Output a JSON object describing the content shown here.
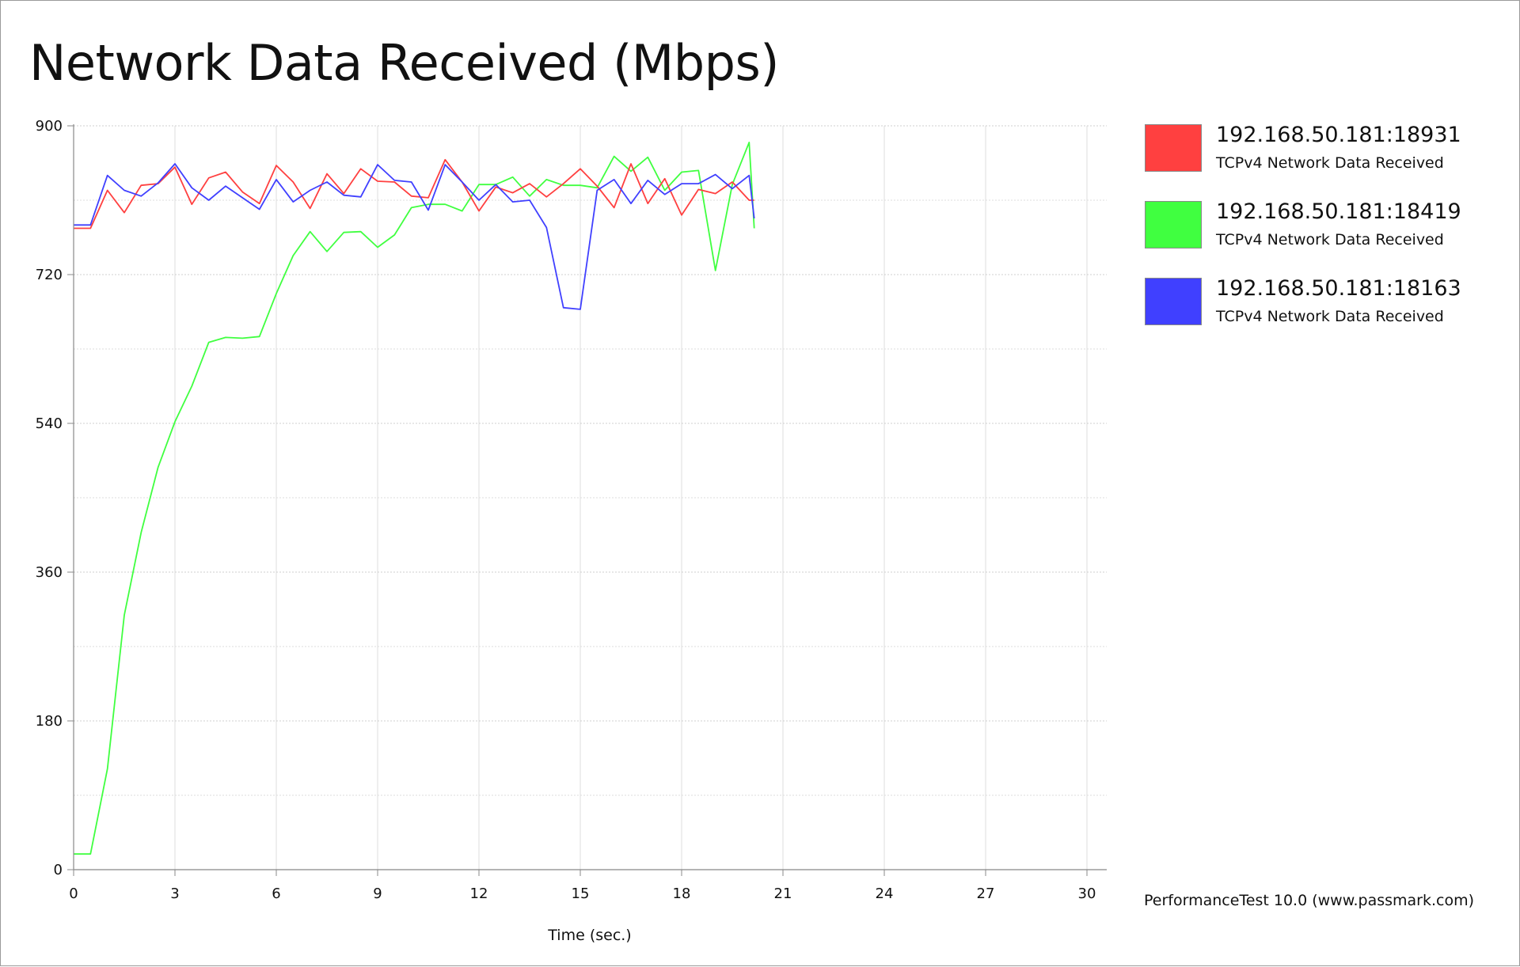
{
  "chart_data": {
    "type": "line",
    "title": "Network Data Received (Mbps)",
    "xlabel": "Time (sec.)",
    "ylabel": "",
    "xlim": [
      0,
      30
    ],
    "ylim": [
      0,
      900
    ],
    "xticks": [
      "0",
      "3",
      "6",
      "9",
      "12",
      "15",
      "18",
      "21",
      "24",
      "27",
      "30"
    ],
    "yticks": [
      "0",
      "180",
      "360",
      "540",
      "720",
      "900"
    ],
    "grid": true,
    "legend_position": "right",
    "series": [
      {
        "name": "192.168.50.181:18931",
        "subtitle": "TCPv4 Network Data Received",
        "color": "#ff4040",
        "x": [
          0,
          0.5,
          1,
          1.5,
          2,
          2.5,
          3,
          3.5,
          4,
          4.5,
          5,
          5.5,
          6,
          6.5,
          7,
          7.5,
          8,
          8.5,
          9,
          9.5,
          10,
          10.5,
          11,
          11.5,
          12,
          12.5,
          13,
          13.5,
          14,
          14.5,
          15,
          15.5,
          16,
          16.5,
          17,
          17.5,
          18,
          18.5,
          19,
          19.5,
          20,
          20.15
        ],
        "y": [
          776,
          776,
          822,
          795,
          828,
          830,
          850,
          805,
          837,
          844,
          820,
          806,
          852,
          832,
          800,
          842,
          818,
          848,
          833,
          832,
          815,
          813,
          859,
          832,
          797,
          826,
          819,
          830,
          814,
          830,
          848,
          827,
          801,
          854,
          806,
          836,
          792,
          823,
          818,
          832,
          810,
          810
        ]
      },
      {
        "name": "192.168.50.181:18419",
        "subtitle": "TCPv4 Network Data Received",
        "color": "#40ff40",
        "x": [
          0,
          0.5,
          1,
          1.5,
          2,
          2.5,
          3,
          3.5,
          4,
          4.5,
          5,
          5.5,
          6,
          6.5,
          7,
          7.5,
          8,
          8.5,
          9,
          9.5,
          10,
          10.5,
          11,
          11.5,
          12,
          12.5,
          13,
          13.5,
          14,
          14.5,
          15,
          15.5,
          16,
          16.5,
          17,
          17.5,
          18,
          18.5,
          19,
          19.5,
          20,
          20.15
        ],
        "y": [
          19,
          19,
          122,
          308,
          408,
          487,
          542,
          585,
          638,
          644,
          643,
          645,
          697,
          743,
          772,
          748,
          771,
          772,
          753,
          768,
          801,
          805,
          805,
          797,
          829,
          829,
          838,
          815,
          835,
          828,
          828,
          825,
          863,
          845,
          862,
          822,
          844,
          846,
          725,
          829,
          880,
          776
        ]
      },
      {
        "name": "192.168.50.181:18163",
        "subtitle": "TCPv4 Network Data Received",
        "color": "#4040ff",
        "x": [
          0,
          0.5,
          1,
          1.5,
          2,
          2.5,
          3,
          3.5,
          4,
          4.5,
          5,
          5.5,
          6,
          6.5,
          7,
          7.5,
          8,
          8.5,
          9,
          9.5,
          10,
          10.5,
          11,
          11.5,
          12,
          12.5,
          13,
          13.5,
          14,
          14.5,
          15,
          15.5,
          16,
          16.5,
          17,
          17.5,
          18,
          18.5,
          19,
          19.5,
          20,
          20.15
        ],
        "y": [
          780,
          780,
          840,
          822,
          815,
          831,
          854,
          825,
          810,
          827,
          813,
          799,
          835,
          808,
          822,
          832,
          816,
          814,
          853,
          834,
          832,
          798,
          853,
          832,
          810,
          829,
          808,
          810,
          777,
          680,
          678,
          822,
          835,
          806,
          834,
          817,
          830,
          830,
          841,
          824,
          840,
          788
        ]
      }
    ]
  },
  "footer": "PerformanceTest 10.0 (www.passmark.com)"
}
